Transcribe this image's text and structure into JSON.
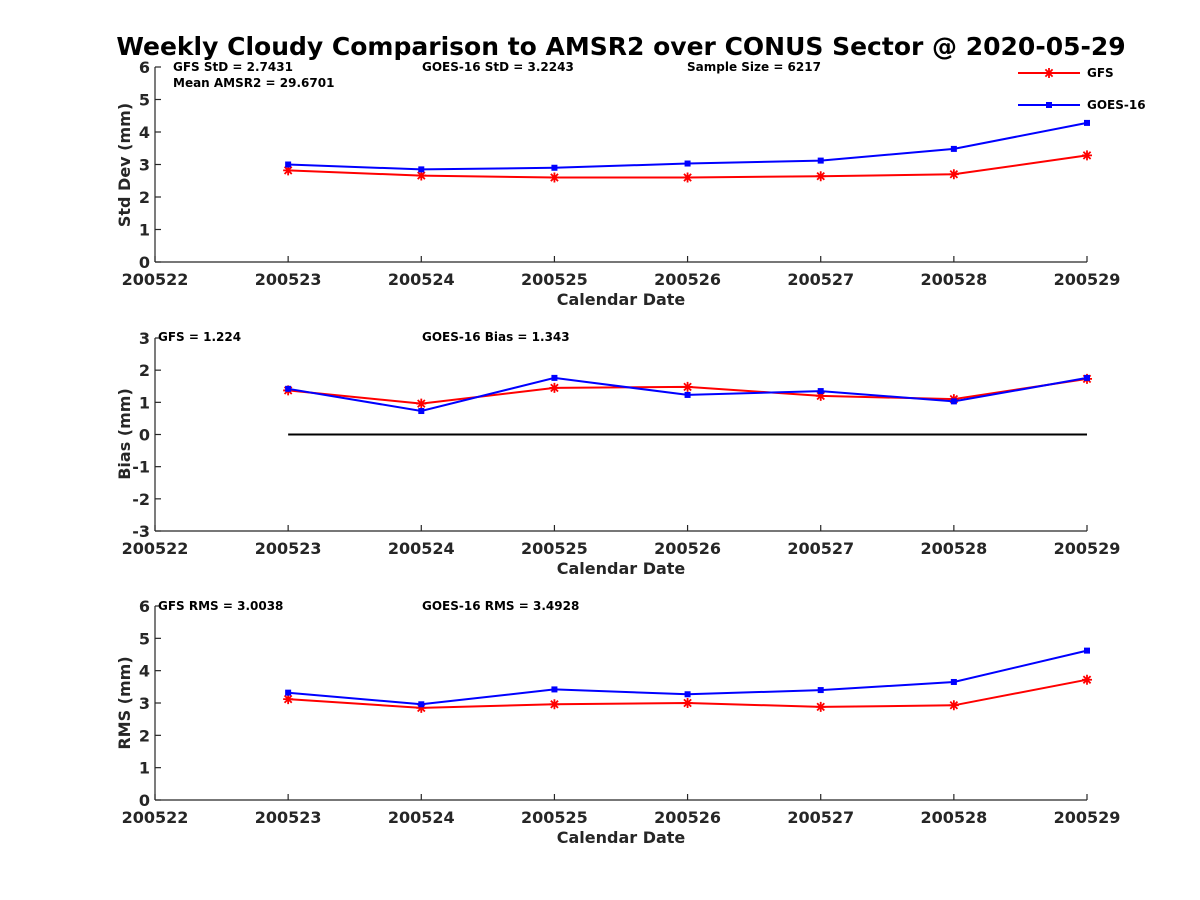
{
  "title": "Weekly Cloudy Comparison to AMSR2 over CONUS Sector @ 2020-05-29",
  "colors": {
    "gfs": "#ff0000",
    "goes": "#0000ff",
    "zero_line": "#000000"
  },
  "legend": {
    "placement": "top-right",
    "entries": [
      {
        "name": "GFS",
        "color": "#ff0000",
        "marker": "asterisk"
      },
      {
        "name": "GOES-16",
        "color": "#0000ff",
        "marker": "square"
      }
    ]
  },
  "chart_data": [
    {
      "type": "line",
      "title": "Weekly Cloudy Comparison to AMSR2 over CONUS Sector @ 2020-05-29",
      "xlabel": "Calendar Date",
      "ylabel": "Std Dev (mm)",
      "categories": [
        "200522",
        "200523",
        "200524",
        "200525",
        "200526",
        "200527",
        "200528",
        "200529"
      ],
      "ylim": [
        0,
        6
      ],
      "yticks": [
        "0",
        "1",
        "2",
        "3",
        "4",
        "5",
        "6"
      ],
      "grid": false,
      "annotations": [
        "GFS StD = 2.7431",
        "Mean AMSR2 = 29.6701",
        "GOES-16 StD = 3.2243",
        "Sample Size = 6217"
      ],
      "series": [
        {
          "name": "GFS",
          "marker": "asterisk",
          "values": [
            null,
            2.82,
            2.66,
            2.6,
            2.6,
            2.64,
            2.7,
            3.28
          ]
        },
        {
          "name": "GOES-16",
          "marker": "square",
          "values": [
            null,
            3.0,
            2.85,
            2.9,
            3.03,
            3.12,
            3.48,
            4.28
          ]
        }
      ]
    },
    {
      "type": "line",
      "xlabel": "Calendar Date",
      "ylabel": "Bias (mm)",
      "categories": [
        "200522",
        "200523",
        "200524",
        "200525",
        "200526",
        "200527",
        "200528",
        "200529"
      ],
      "ylim": [
        -3,
        3
      ],
      "yticks": [
        "-3",
        "-2",
        "-1",
        "0",
        "1",
        "2",
        "3"
      ],
      "grid": false,
      "zero_line": true,
      "annotations": [
        "GFS = 1.224",
        "GOES-16 Bias  = 1.343"
      ],
      "series": [
        {
          "name": "GFS",
          "marker": "asterisk",
          "values": [
            null,
            1.37,
            0.96,
            1.45,
            1.48,
            1.2,
            1.1,
            1.73
          ]
        },
        {
          "name": "GOES-16",
          "marker": "square",
          "values": [
            null,
            1.42,
            0.73,
            1.76,
            1.23,
            1.35,
            1.03,
            1.76
          ]
        }
      ]
    },
    {
      "type": "line",
      "xlabel": "Calendar Date",
      "ylabel": "RMS (mm)",
      "categories": [
        "200522",
        "200523",
        "200524",
        "200525",
        "200526",
        "200527",
        "200528",
        "200529"
      ],
      "ylim": [
        0,
        6
      ],
      "yticks": [
        "0",
        "1",
        "2",
        "3",
        "4",
        "5",
        "6"
      ],
      "grid": false,
      "annotations": [
        "GFS RMS = 3.0038",
        "GOES-16 RMS = 3.4928"
      ],
      "series": [
        {
          "name": "GFS",
          "marker": "asterisk",
          "values": [
            null,
            3.12,
            2.85,
            2.96,
            3.0,
            2.88,
            2.93,
            3.72
          ]
        },
        {
          "name": "GOES-16",
          "marker": "square",
          "values": [
            null,
            3.32,
            2.96,
            3.42,
            3.27,
            3.4,
            3.65,
            4.62
          ]
        }
      ]
    }
  ]
}
